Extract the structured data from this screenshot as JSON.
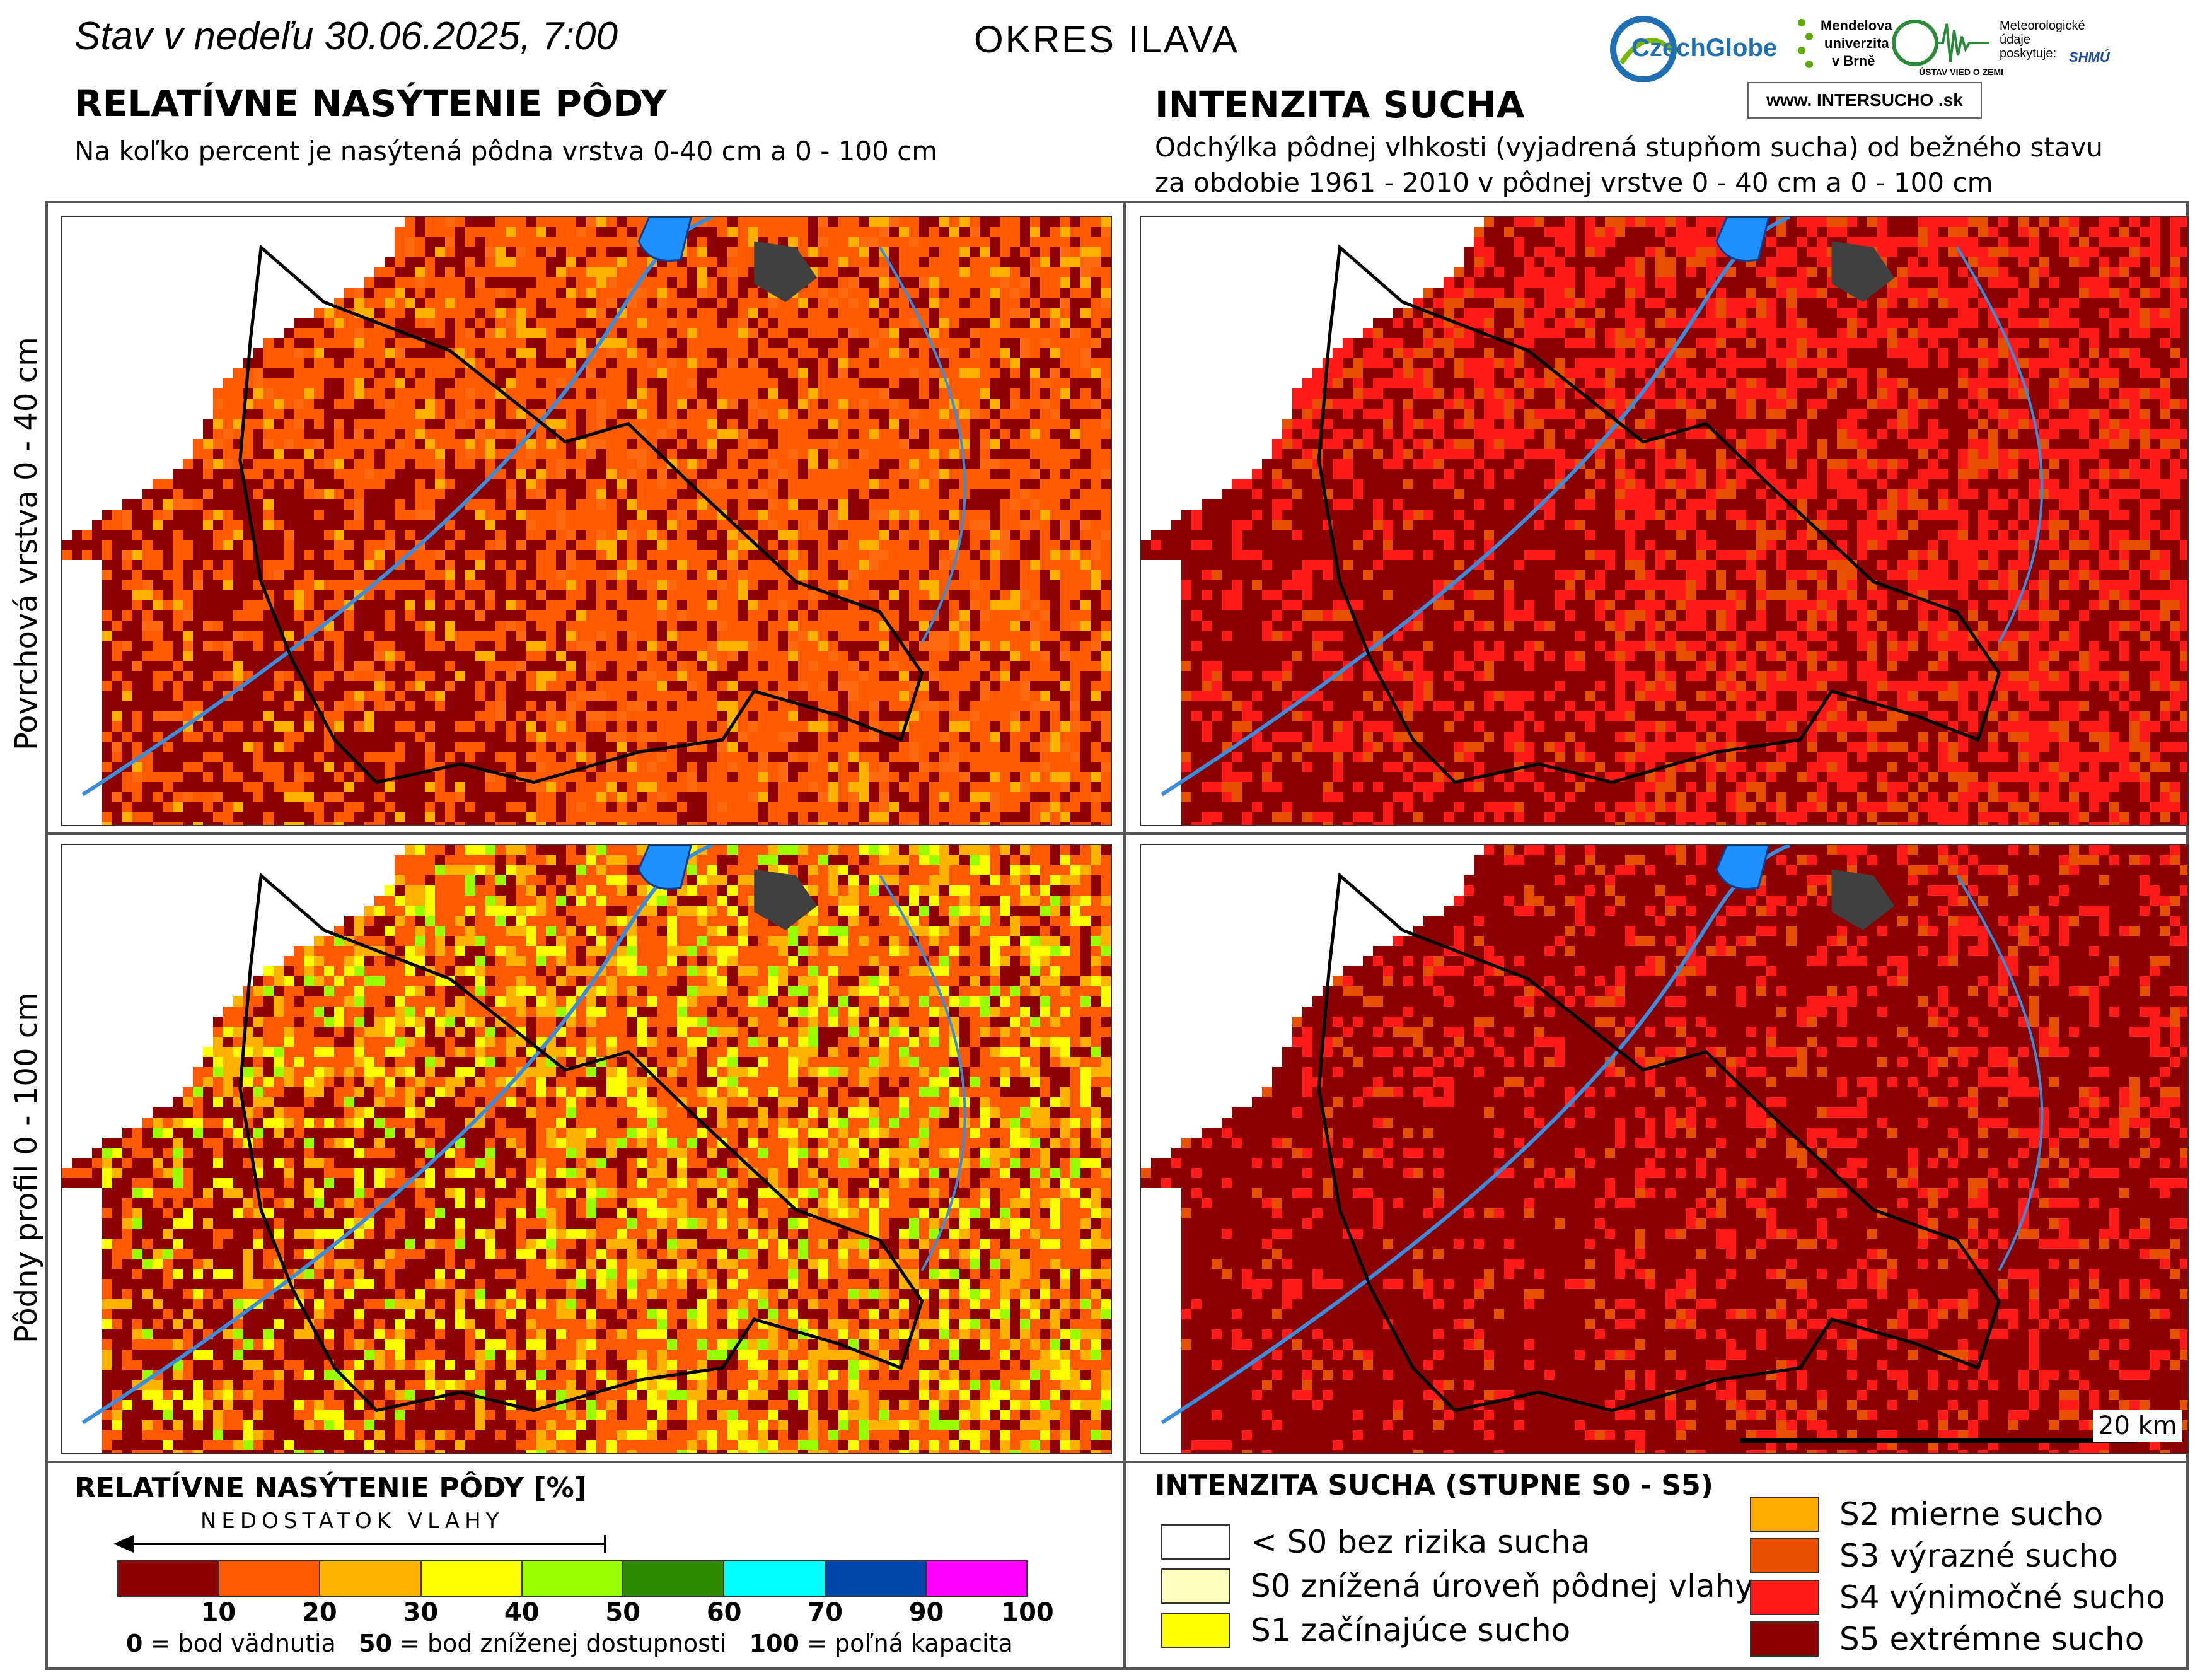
{
  "header": {
    "date_line": "Stav v nedeľu 30.06.2025, 7:00",
    "district": "OKRES ILAVA"
  },
  "left_column": {
    "title": "RELATÍVNE NASÝTENIE PÔDY",
    "subtitle": "Na koľko percent je nasýtená pôdna vrstva 0-40 cm a 0 - 100 cm"
  },
  "right_column": {
    "title": "INTENZITA SUCHA",
    "subtitle_line1": "Odchýlka pôdnej vlhkosti (vyjadrená stupňom sucha) od bežného stavu",
    "subtitle_line2": "za obdobie 1961 - 2010 v pôdnej vrstve 0 - 40 cm a 0 - 100 cm"
  },
  "row_labels": {
    "top": "Povrchová vrstva 0 - 40 cm",
    "bottom": "Pôdny profil 0 - 100 cm"
  },
  "logos": {
    "czechglobe": "CzechGlobe",
    "mendel_line1": "Mendelova",
    "mendel_line2": "univerzita",
    "mendel_line3": "v Brně",
    "uvz": "ÚSTAV VIED O ZEMI",
    "shmu_line1": "Meteorologické",
    "shmu_line2": "údaje",
    "shmu_line3": "poskytuje:",
    "shmu_logo": "SHMÚ",
    "intersucho": "www. INTERSUCHO .sk"
  },
  "scale_bar": {
    "label": "20 km"
  },
  "saturation_legend": {
    "title": "RELATÍVNE NASÝTENIE PÔDY [%]",
    "arrow_label": "NEDOSTATOK VLAHY",
    "colors": [
      "#8b0000",
      "#ff5a00",
      "#ffb300",
      "#ffff00",
      "#99ff00",
      "#2e8b00",
      "#00ffff",
      "#0047ab",
      "#ff00ff"
    ],
    "ticks": [
      "10",
      "20",
      "30",
      "40",
      "50",
      "60",
      "70",
      "90",
      "100"
    ],
    "note_0_value": "0",
    "note_0_text": " = bod vädnutia",
    "note_50_value": "50",
    "note_50_text": " = bod zníženej dostupnosti",
    "note_100_value": "100",
    "note_100_text": " = poľná kapacita"
  },
  "drought_legend": {
    "title": "INTENZITA SUCHA (STUPNE S0 - S5)",
    "items_left": [
      {
        "label": "< S0 bez rizika sucha",
        "color": "#ffffff"
      },
      {
        "label": "S0 znížená úroveň pôdnej vlahy",
        "color": "#ffffc0"
      },
      {
        "label": "S1 začínajúce sucho",
        "color": "#ffff00"
      }
    ],
    "items_right": [
      {
        "label": "S2 mierne sucho",
        "color": "#ffaa00"
      },
      {
        "label": "S3 výrazné sucho",
        "color": "#e65100"
      },
      {
        "label": "S4 výnimočné sucho",
        "color": "#ff1a1a"
      },
      {
        "label": "S5 extrémne sucho",
        "color": "#8b0000"
      }
    ]
  },
  "map_panels": [
    {
      "name": "saturation-0-40",
      "palette": [
        "#8b0000",
        "#ff5a00",
        "#ff5a00",
        "#ff6a10",
        "#ffb300"
      ],
      "weights": [
        0.28,
        0.4,
        0.12,
        0.1,
        0.1
      ]
    },
    {
      "name": "drought-0-40",
      "palette": [
        "#8b0000",
        "#ff1a1a",
        "#e65100",
        "#ff1a1a"
      ],
      "weights": [
        0.45,
        0.3,
        0.15,
        0.1
      ]
    },
    {
      "name": "saturation-0-100",
      "palette": [
        "#8b0000",
        "#ff5a00",
        "#ffb300",
        "#ffff00",
        "#99ff00"
      ],
      "weights": [
        0.2,
        0.42,
        0.18,
        0.14,
        0.06
      ]
    },
    {
      "name": "drought-0-100",
      "palette": [
        "#8b0000",
        "#ff1a1a",
        "#e65100"
      ],
      "weights": [
        0.72,
        0.2,
        0.08
      ]
    }
  ]
}
